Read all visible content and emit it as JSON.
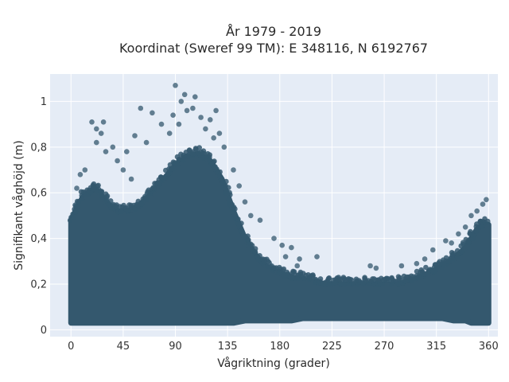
{
  "chart_data": {
    "type": "scatter",
    "title": "År 1979 - 2019",
    "subtitle": "Koordinat (Sweref 99 TM): E 348116, N 6192767",
    "xlabel": "Vågriktning (grader)",
    "ylabel": "Signifikant våghöjd (m)",
    "xlim": [
      -18,
      368
    ],
    "ylim": [
      -0.03,
      1.12
    ],
    "x_ticks": [
      0,
      45,
      90,
      135,
      180,
      225,
      270,
      315,
      360
    ],
    "x_tick_labels": [
      "0",
      "45",
      "90",
      "135",
      "180",
      "225",
      "270",
      "315",
      "360"
    ],
    "y_ticks": [
      0,
      0.2,
      0.4,
      0.6,
      0.8,
      1
    ],
    "y_tick_labels": [
      "0",
      "0,2",
      "0,4",
      "0,6",
      "0,8",
      "1"
    ],
    "grid": true,
    "background": "#e5ecf6",
    "marker_color": "#34586e",
    "dense_band": {
      "x": [
        0,
        5,
        10,
        15,
        20,
        25,
        30,
        40,
        50,
        60,
        70,
        80,
        90,
        100,
        110,
        120,
        130,
        140,
        150,
        160,
        170,
        180,
        190,
        200,
        210,
        220,
        230,
        240,
        250,
        260,
        270,
        280,
        290,
        300,
        310,
        320,
        330,
        340,
        345,
        350,
        355,
        360
      ],
      "y_min": [
        0.03,
        0.03,
        0.03,
        0.03,
        0.03,
        0.03,
        0.03,
        0.03,
        0.03,
        0.03,
        0.03,
        0.03,
        0.03,
        0.03,
        0.03,
        0.03,
        0.03,
        0.03,
        0.04,
        0.04,
        0.04,
        0.04,
        0.04,
        0.05,
        0.05,
        0.05,
        0.05,
        0.05,
        0.05,
        0.05,
        0.05,
        0.05,
        0.05,
        0.05,
        0.05,
        0.05,
        0.04,
        0.04,
        0.03,
        0.03,
        0.03,
        0.03
      ],
      "y_max": [
        0.48,
        0.53,
        0.58,
        0.6,
        0.62,
        0.6,
        0.56,
        0.52,
        0.52,
        0.55,
        0.6,
        0.66,
        0.72,
        0.76,
        0.77,
        0.74,
        0.66,
        0.52,
        0.4,
        0.32,
        0.27,
        0.25,
        0.23,
        0.22,
        0.21,
        0.2,
        0.2,
        0.2,
        0.2,
        0.2,
        0.2,
        0.2,
        0.21,
        0.23,
        0.25,
        0.28,
        0.31,
        0.36,
        0.4,
        0.44,
        0.46,
        0.46
      ]
    },
    "outliers": [
      [
        90,
        1.07
      ],
      [
        98,
        1.03
      ],
      [
        107,
        1.02
      ],
      [
        95,
        1.0
      ],
      [
        100,
        0.96
      ],
      [
        105,
        0.97
      ],
      [
        88,
        0.94
      ],
      [
        112,
        0.93
      ],
      [
        120,
        0.92
      ],
      [
        125,
        0.96
      ],
      [
        60,
        0.97
      ],
      [
        70,
        0.95
      ],
      [
        78,
        0.9
      ],
      [
        18,
        0.91
      ],
      [
        28,
        0.91
      ],
      [
        26,
        0.86
      ],
      [
        22,
        0.88
      ],
      [
        55,
        0.85
      ],
      [
        65,
        0.82
      ],
      [
        48,
        0.78
      ],
      [
        30,
        0.78
      ],
      [
        40,
        0.74
      ],
      [
        22,
        0.82
      ],
      [
        36,
        0.8
      ],
      [
        128,
        0.86
      ],
      [
        132,
        0.8
      ],
      [
        140,
        0.7
      ],
      [
        145,
        0.63
      ],
      [
        150,
        0.56
      ],
      [
        155,
        0.5
      ],
      [
        163,
        0.48
      ],
      [
        175,
        0.4
      ],
      [
        182,
        0.37
      ],
      [
        190,
        0.36
      ],
      [
        197,
        0.31
      ],
      [
        212,
        0.32
      ],
      [
        185,
        0.32
      ],
      [
        195,
        0.28
      ],
      [
        232,
        0.22
      ],
      [
        258,
        0.28
      ],
      [
        263,
        0.27
      ],
      [
        285,
        0.28
      ],
      [
        298,
        0.29
      ],
      [
        305,
        0.31
      ],
      [
        312,
        0.35
      ],
      [
        323,
        0.39
      ],
      [
        334,
        0.42
      ],
      [
        340,
        0.45
      ],
      [
        345,
        0.5
      ],
      [
        350,
        0.52
      ],
      [
        355,
        0.55
      ],
      [
        358,
        0.57
      ],
      [
        333,
        0.33
      ],
      [
        328,
        0.38
      ],
      [
        5,
        0.62
      ],
      [
        8,
        0.68
      ],
      [
        12,
        0.7
      ],
      [
        45,
        0.7
      ],
      [
        52,
        0.66
      ],
      [
        85,
        0.86
      ],
      [
        93,
        0.9
      ],
      [
        116,
        0.88
      ],
      [
        123,
        0.84
      ]
    ]
  }
}
